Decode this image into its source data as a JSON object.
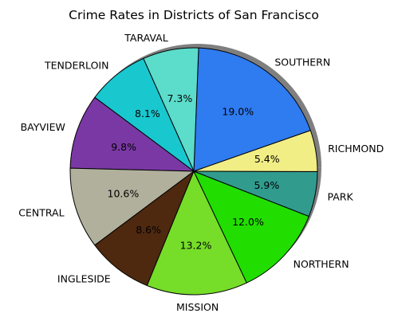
{
  "chart_data": {
    "type": "pie",
    "title": "Crime Rates in Districts of San Francisco",
    "slices": [
      {
        "label": "SOUTHERN",
        "value": 19.0,
        "pct_label": "19.0%",
        "color": "#2f7bf0"
      },
      {
        "label": "TARAVAL",
        "value": 7.3,
        "pct_label": "7.3%",
        "color": "#5cdccb"
      },
      {
        "label": "TENDERLOIN",
        "value": 8.1,
        "pct_label": "8.1%",
        "color": "#19c7cf"
      },
      {
        "label": "BAYVIEW",
        "value": 9.8,
        "pct_label": "9.8%",
        "color": "#7a38a5"
      },
      {
        "label": "CENTRAL",
        "value": 10.6,
        "pct_label": "10.6%",
        "color": "#b0b09c"
      },
      {
        "label": "INGLESIDE",
        "value": 8.6,
        "pct_label": "8.6%",
        "color": "#4e2910"
      },
      {
        "label": "MISSION",
        "value": 13.2,
        "pct_label": "13.2%",
        "color": "#76dd28"
      },
      {
        "label": "NORTHERN",
        "value": 12.0,
        "pct_label": "12.0%",
        "color": "#22dd00"
      },
      {
        "label": "PARK",
        "value": 5.9,
        "pct_label": "5.9%",
        "color": "#319b8e"
      },
      {
        "label": "RICHMOND",
        "value": 5.4,
        "pct_label": "5.4%",
        "color": "#f2ee86"
      }
    ],
    "start_angle_deg": 19.3,
    "direction": "counterclockwise",
    "shadow": true,
    "legend": "none"
  }
}
